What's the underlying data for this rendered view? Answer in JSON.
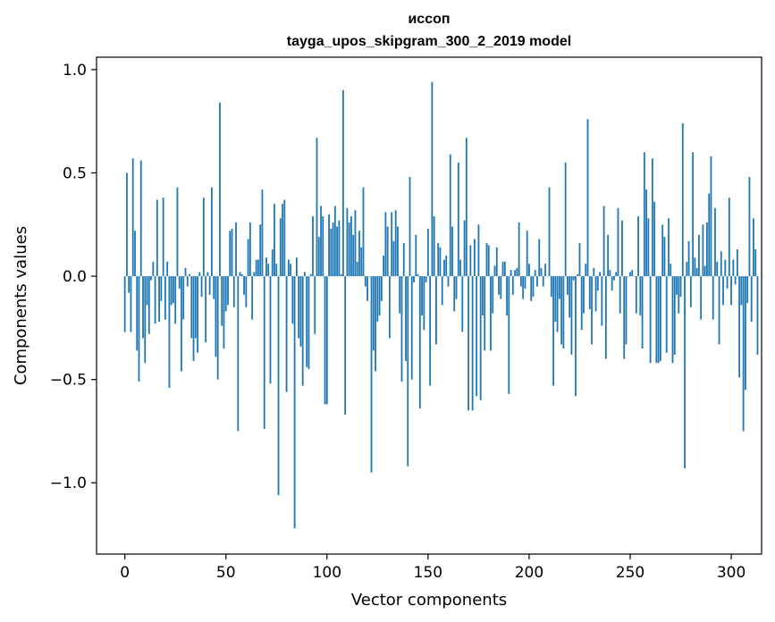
{
  "chart_data": {
    "type": "bar",
    "title_line1": "иссоп",
    "title_line2": "tayga_upos_skipgram_300_2_2019 model",
    "xlabel": "Vector components",
    "ylabel": "Components values",
    "xlim": [
      -14,
      315
    ],
    "ylim": [
      -1.345,
      1.06
    ],
    "xticks": [
      0,
      50,
      100,
      150,
      200,
      250,
      300
    ],
    "xtick_labels": [
      "0",
      "50",
      "100",
      "150",
      "200",
      "250",
      "300"
    ],
    "yticks": [
      -1.0,
      -0.5,
      0.0,
      0.5,
      1.0
    ],
    "ytick_labels": [
      "−1.0",
      "−0.5",
      "0.0",
      "0.5",
      "1.0"
    ],
    "bar_color": "#1f77b4",
    "values": [
      -0.27,
      0.5,
      -0.08,
      -0.27,
      0.57,
      0.22,
      -0.36,
      -0.51,
      0.56,
      -0.3,
      -0.42,
      -0.14,
      -0.28,
      -0.02,
      0.07,
      -0.23,
      0.37,
      -0.22,
      -0.12,
      0.38,
      -0.21,
      0.07,
      -0.54,
      -0.14,
      -0.13,
      -0.23,
      0.43,
      -0.06,
      -0.46,
      -0.21,
      0.04,
      -0.05,
      0.01,
      -0.3,
      -0.41,
      -0.3,
      -0.37,
      0.02,
      -0.1,
      0.38,
      -0.32,
      0.02,
      -0.09,
      0.43,
      -0.11,
      -0.39,
      -0.5,
      0.84,
      -0.24,
      -0.35,
      -0.17,
      -0.14,
      0.22,
      0.23,
      -0.15,
      0.26,
      -0.75,
      0.02,
      0.01,
      -0.09,
      -0.15,
      0.18,
      0.26,
      -0.21,
      0.02,
      0.08,
      0.08,
      0.25,
      0.42,
      -0.74,
      0.09,
      0.06,
      -0.52,
      0.13,
      0.35,
      0.06,
      -1.06,
      0.28,
      0.35,
      0.37,
      -0.56,
      0.08,
      0.06,
      -0.23,
      -1.22,
      0.09,
      -0.3,
      -0.34,
      -0.53,
      0.02,
      -0.44,
      -0.45,
      0.01,
      0.29,
      -0.28,
      0.67,
      0.19,
      0.34,
      0.29,
      -0.62,
      -0.62,
      0.3,
      0.23,
      0.26,
      0.34,
      0.24,
      0.27,
      0.01,
      0.9,
      -0.67,
      0.33,
      0.26,
      0.29,
      0.2,
      0.32,
      0.07,
      0.22,
      0.14,
      0.43,
      -0.05,
      -0.12,
      0.0,
      -0.95,
      -0.36,
      -0.46,
      -0.22,
      -0.19,
      -0.12,
      0.1,
      0.31,
      0.24,
      -0.3,
      0.31,
      0.17,
      0.32,
      0.24,
      -0.18,
      -0.51,
      0.16,
      -0.41,
      -0.92,
      0.48,
      -0.5,
      -0.03,
      0.2,
      0.01,
      -0.64,
      -0.19,
      -0.26,
      -0.03,
      0.23,
      -0.53,
      0.94,
      0.29,
      -0.33,
      0.16,
      0.14,
      -0.14,
      0.08,
      0.1,
      -0.05,
      0.59,
      0.24,
      -0.17,
      -0.11,
      0.55,
      0.08,
      -0.27,
      0.27,
      0.67,
      -0.65,
      0.15,
      -0.65,
      0.18,
      -0.58,
      0.25,
      -0.6,
      -0.19,
      -0.36,
      0.16,
      0.15,
      -0.36,
      -0.18,
      0.05,
      0.14,
      -0.09,
      -0.11,
      0.07,
      0.07,
      -0.19,
      -0.57,
      0.03,
      -0.09,
      0.03,
      0.04,
      0.26,
      -0.05,
      -0.11,
      -0.06,
      0.22,
      0.06,
      -0.12,
      -0.1,
      0.03,
      -0.05,
      0.18,
      0.04,
      -0.05,
      0.06,
      0.0,
      0.43,
      -0.1,
      -0.53,
      -0.22,
      -0.27,
      -0.11,
      -0.33,
      -0.35,
      0.55,
      -0.09,
      -0.2,
      -0.38,
      -0.02,
      -0.58,
      0.01,
      0.16,
      -0.26,
      -0.18,
      0.06,
      0.76,
      -0.16,
      -0.33,
      0.04,
      -0.17,
      -0.07,
      0.02,
      -0.24,
      0.34,
      -0.4,
      0.2,
      0.03,
      -0.07,
      -0.02,
      0.02,
      0.33,
      -0.18,
      0.27,
      -0.4,
      -0.33,
      0.0,
      0.02,
      0.03,
      0.0,
      -0.18,
      0.29,
      -0.19,
      -0.35,
      0.6,
      0.42,
      0.28,
      -0.42,
      0.57,
      0.36,
      -0.42,
      -0.42,
      -0.41,
      0.25,
      0.19,
      -0.37,
      0.28,
      0.06,
      -0.42,
      -0.38,
      -0.09,
      -0.18,
      -0.1,
      0.74,
      -0.93,
      0.07,
      0.17,
      -0.15,
      0.6,
      0.09,
      0.04,
      0.2,
      -0.21,
      0.25,
      0.05,
      0.26,
      0.4,
      0.58,
      -0.21,
      0.33,
      0.07,
      -0.33,
      0.12,
      -0.14,
      0.08,
      -0.06,
      0.38,
      -0.14,
      0.08,
      -0.04,
      0.13,
      -0.49,
      -0.14,
      -0.75,
      -0.55,
      -0.13,
      0.48,
      -0.22,
      0.28,
      0.13,
      -0.38
    ]
  }
}
